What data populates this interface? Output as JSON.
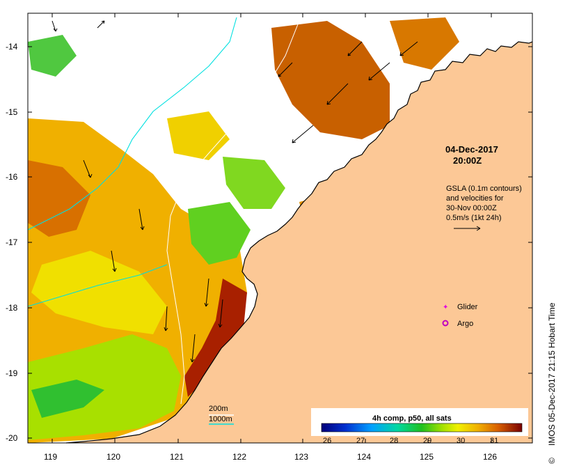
{
  "map": {
    "longitude_ticks": [
      "119",
      "120",
      "121",
      "122",
      "123",
      "124",
      "125",
      "126"
    ],
    "latitude_ticks": [
      "-14",
      "-15",
      "-16",
      "-17",
      "-18",
      "-19",
      "-20"
    ],
    "date": "04-Dec-2017",
    "time": "20:00Z",
    "gsla_note": [
      "GSLA (0.1m contours)",
      "and velocities for",
      "30-Nov 00:00Z",
      "0.5m/s (1kt 24h)"
    ],
    "legend": {
      "glider_label": "Glider",
      "argo_label": "Argo",
      "glider_color": "#e000e0",
      "argo_color": "#c000c0"
    },
    "isobaths": [
      {
        "label": "200m",
        "color": "#ffffff"
      },
      {
        "label": "1000m",
        "color": "#00e0e0"
      }
    ],
    "colorbar": {
      "title": "4h comp, p50, all sats",
      "ticks": [
        "26",
        "27",
        "28",
        "29",
        "30",
        "31"
      ],
      "range": [
        25.5,
        31.5
      ]
    },
    "credit": "IMOS 05-Dec-2017 21:15 Hobart Time",
    "colors": {
      "land": "#fcc896",
      "coast": "#000000"
    }
  }
}
